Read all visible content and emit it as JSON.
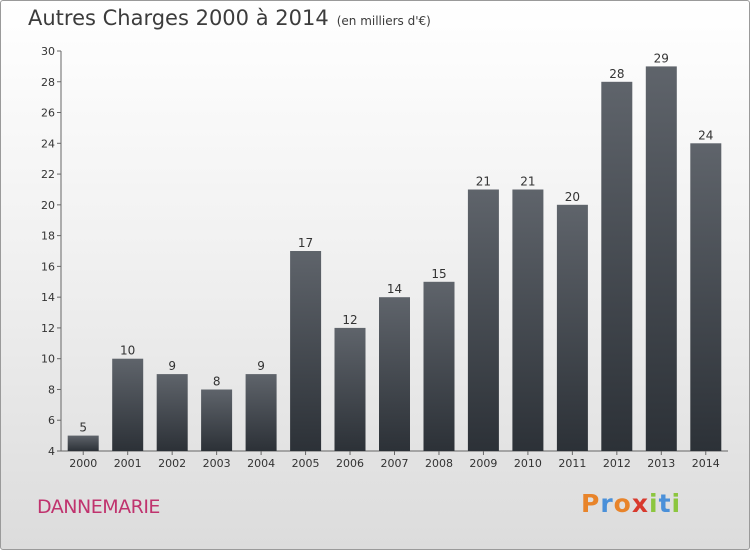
{
  "chart_data": {
    "type": "bar",
    "title": "Autres Charges 2000 à 2014",
    "subtitle": "(en milliers d'€)",
    "categories": [
      "2000",
      "2001",
      "2002",
      "2003",
      "2004",
      "2005",
      "2006",
      "2007",
      "2008",
      "2009",
      "2010",
      "2011",
      "2012",
      "2013",
      "2014"
    ],
    "values": [
      5,
      10,
      9,
      8,
      9,
      17,
      12,
      14,
      15,
      21,
      21,
      20,
      28,
      29,
      24
    ],
    "ylim": [
      4,
      30
    ],
    "yticks": [
      4,
      6,
      8,
      10,
      12,
      14,
      16,
      18,
      20,
      22,
      24,
      26,
      28,
      30
    ],
    "xlabel": "",
    "ylabel": "",
    "grid": false,
    "bar_color_top": "#5f646b",
    "bar_color_bottom": "#2c3137"
  },
  "footer": {
    "commune": "DANNEMARIE",
    "brand": "Proxiti"
  },
  "colors": {
    "commune": "#c0336e",
    "brand_letters": [
      "#e8842a",
      "#4a90d9",
      "#e8842a",
      "#d83a2e",
      "#8cc63f",
      "#4a90d9",
      "#8cc63f"
    ]
  }
}
